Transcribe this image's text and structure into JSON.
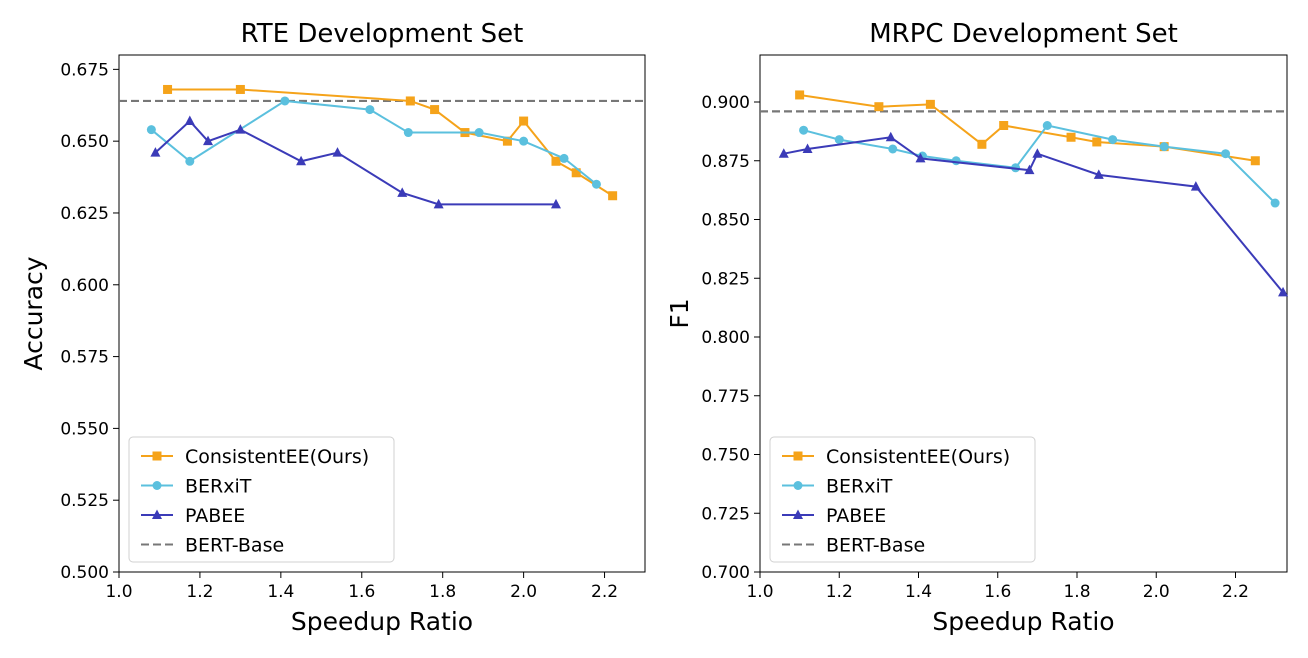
{
  "chart_data": [
    {
      "id": "rte",
      "type": "line",
      "title": "RTE Development Set",
      "xlabel": "Speedup Ratio",
      "ylabel": "Accuracy",
      "xlim": [
        1.0,
        2.3
      ],
      "ylim": [
        0.5,
        0.68
      ],
      "xticks": [
        "1.0",
        "1.2",
        "1.4",
        "1.6",
        "1.8",
        "2.0",
        "2.2"
      ],
      "yticks": [
        "0.500",
        "0.525",
        "0.550",
        "0.575",
        "0.600",
        "0.625",
        "0.650",
        "0.675"
      ],
      "grid": false,
      "legend_position": "lower-left",
      "baseline": {
        "name": "BERT-Base",
        "y": 0.664,
        "color": "#777777"
      },
      "series": [
        {
          "name": "ConsistentEE(Ours)",
          "marker": "square",
          "color": "#f5a31a",
          "points": [
            [
              1.12,
              0.668
            ],
            [
              1.3,
              0.668
            ],
            [
              1.72,
              0.664
            ],
            [
              1.78,
              0.661
            ],
            [
              1.855,
              0.653
            ],
            [
              1.96,
              0.65
            ],
            [
              2.0,
              0.657
            ],
            [
              2.08,
              0.643
            ],
            [
              2.13,
              0.639
            ],
            [
              2.22,
              0.631
            ]
          ]
        },
        {
          "name": "BERxiT",
          "marker": "circle",
          "color": "#5bc0de",
          "points": [
            [
              1.08,
              0.654
            ],
            [
              1.175,
              0.643
            ],
            [
              1.41,
              0.664
            ],
            [
              1.62,
              0.661
            ],
            [
              1.715,
              0.653
            ],
            [
              1.89,
              0.653
            ],
            [
              2.0,
              0.65
            ],
            [
              2.1,
              0.644
            ],
            [
              2.18,
              0.635
            ]
          ]
        },
        {
          "name": "PABEE",
          "marker": "triangle",
          "color": "#3b3bb8",
          "points": [
            [
              1.09,
              0.646
            ],
            [
              1.175,
              0.657
            ],
            [
              1.22,
              0.65
            ],
            [
              1.3,
              0.654
            ],
            [
              1.45,
              0.643
            ],
            [
              1.54,
              0.646
            ],
            [
              1.7,
              0.632
            ],
            [
              1.79,
              0.628
            ],
            [
              2.08,
              0.628
            ]
          ]
        }
      ]
    },
    {
      "id": "mrpc",
      "type": "line",
      "title": "MRPC Development Set",
      "xlabel": "Speedup Ratio",
      "ylabel": "F1",
      "xlim": [
        1.0,
        2.33
      ],
      "ylim": [
        0.7,
        0.92
      ],
      "xticks": [
        "1.0",
        "1.2",
        "1.4",
        "1.6",
        "1.8",
        "2.0",
        "2.2"
      ],
      "yticks": [
        "0.700",
        "0.725",
        "0.750",
        "0.775",
        "0.800",
        "0.825",
        "0.850",
        "0.875",
        "0.900"
      ],
      "grid": false,
      "legend_position": "lower-left",
      "baseline": {
        "name": "BERT-Base",
        "y": 0.896,
        "color": "#777777"
      },
      "series": [
        {
          "name": "ConsistentEE(Ours)",
          "marker": "square",
          "color": "#f5a31a",
          "points": [
            [
              1.1,
              0.903
            ],
            [
              1.3,
              0.898
            ],
            [
              1.43,
              0.899
            ],
            [
              1.56,
              0.882
            ],
            [
              1.615,
              0.89
            ],
            [
              1.785,
              0.885
            ],
            [
              1.85,
              0.883
            ],
            [
              2.02,
              0.881
            ],
            [
              2.25,
              0.875
            ]
          ]
        },
        {
          "name": "BERxiT",
          "marker": "circle",
          "color": "#5bc0de",
          "points": [
            [
              1.11,
              0.888
            ],
            [
              1.2,
              0.884
            ],
            [
              1.335,
              0.88
            ],
            [
              1.41,
              0.877
            ],
            [
              1.495,
              0.875
            ],
            [
              1.645,
              0.872
            ],
            [
              1.725,
              0.89
            ],
            [
              1.89,
              0.884
            ],
            [
              2.02,
              0.881
            ],
            [
              2.175,
              0.878
            ],
            [
              2.3,
              0.857
            ]
          ]
        },
        {
          "name": "PABEE",
          "marker": "triangle",
          "color": "#3b3bb8",
          "points": [
            [
              1.06,
              0.878
            ],
            [
              1.12,
              0.88
            ],
            [
              1.33,
              0.885
            ],
            [
              1.405,
              0.876
            ],
            [
              1.68,
              0.871
            ],
            [
              1.7,
              0.878
            ],
            [
              1.855,
              0.869
            ],
            [
              2.1,
              0.864
            ],
            [
              2.32,
              0.819
            ]
          ]
        }
      ]
    }
  ]
}
